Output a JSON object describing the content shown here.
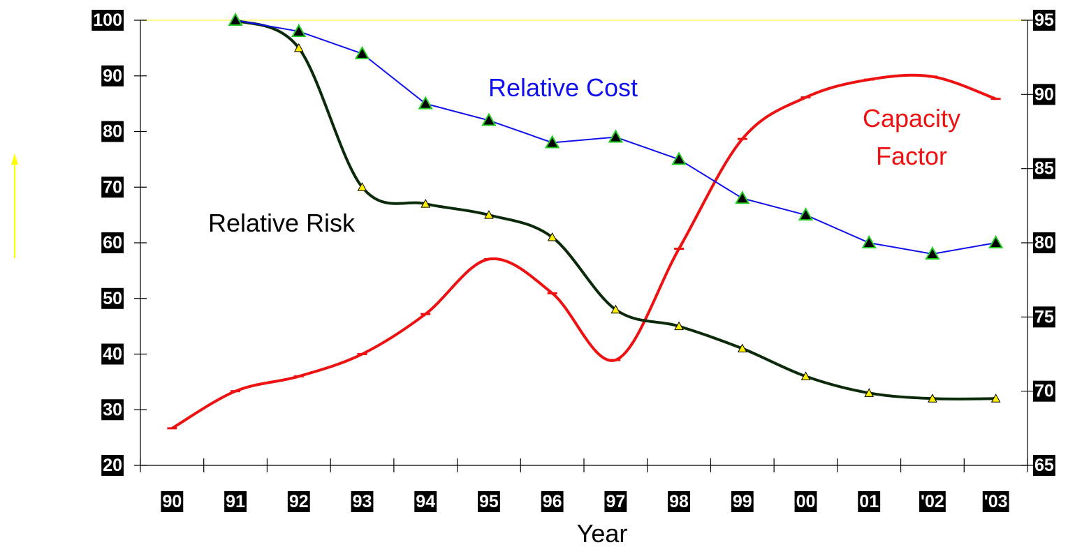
{
  "colors": {
    "relative_risk": "#0a2a0a",
    "relative_cost": "#1010ee",
    "capacity_factor": "#ee1111",
    "cost_marker_fill": "#000000",
    "cost_marker_stroke": "#22cc22",
    "risk_marker_fill": "#ffee00",
    "top_gridline": "#ffff66",
    "arrow": "#ffff00"
  },
  "icons": {
    "up_arrow": "up-arrow-icon"
  },
  "chart_data": {
    "type": "line",
    "xlabel": "Year",
    "categories": [
      "90",
      "91",
      "92",
      "93",
      "94",
      "95",
      "96",
      "97",
      "98",
      "99",
      "00",
      "01",
      "'02",
      "'03"
    ],
    "y_left": {
      "range": [
        20,
        100
      ],
      "ticks": [
        "100",
        "90",
        "80",
        "70",
        "60",
        "50",
        "40",
        "30",
        "20"
      ]
    },
    "y_right": {
      "range": [
        65,
        95
      ],
      "ticks": [
        "95",
        "90",
        "85",
        "80",
        "75",
        "70",
        "65"
      ]
    },
    "grid": false,
    "series": [
      {
        "name": "Relative Risk",
        "axis": "left",
        "label_lines": [
          "Relative Risk"
        ],
        "x": [
          "91",
          "92",
          "93",
          "94",
          "95",
          "96",
          "97",
          "98",
          "99",
          "00",
          "01",
          "'02",
          "'03"
        ],
        "values": [
          100,
          95,
          70,
          67,
          65,
          61,
          48,
          45,
          41,
          36,
          33,
          32,
          32
        ]
      },
      {
        "name": "Relative Cost",
        "axis": "left",
        "label_lines": [
          "Relative Cost"
        ],
        "x": [
          "91",
          "92",
          "93",
          "94",
          "95",
          "96",
          "97",
          "98",
          "99",
          "00",
          "01",
          "'02",
          "'03"
        ],
        "values": [
          100,
          98,
          94,
          85,
          82,
          78,
          79,
          75,
          68,
          65,
          60,
          58,
          60
        ]
      },
      {
        "name": "Capacity Factor",
        "axis": "right",
        "label_lines": [
          "Capacity",
          "Factor"
        ],
        "x": [
          "90",
          "91",
          "92",
          "93",
          "94",
          "95",
          "96",
          "97",
          "98",
          "99",
          "00",
          "01",
          "'02",
          "'03"
        ],
        "values": [
          67.5,
          70.0,
          71.0,
          72.5,
          75.2,
          78.9,
          76.6,
          72.1,
          79.6,
          87.0,
          89.8,
          91.0,
          91.2,
          89.7
        ]
      }
    ]
  }
}
